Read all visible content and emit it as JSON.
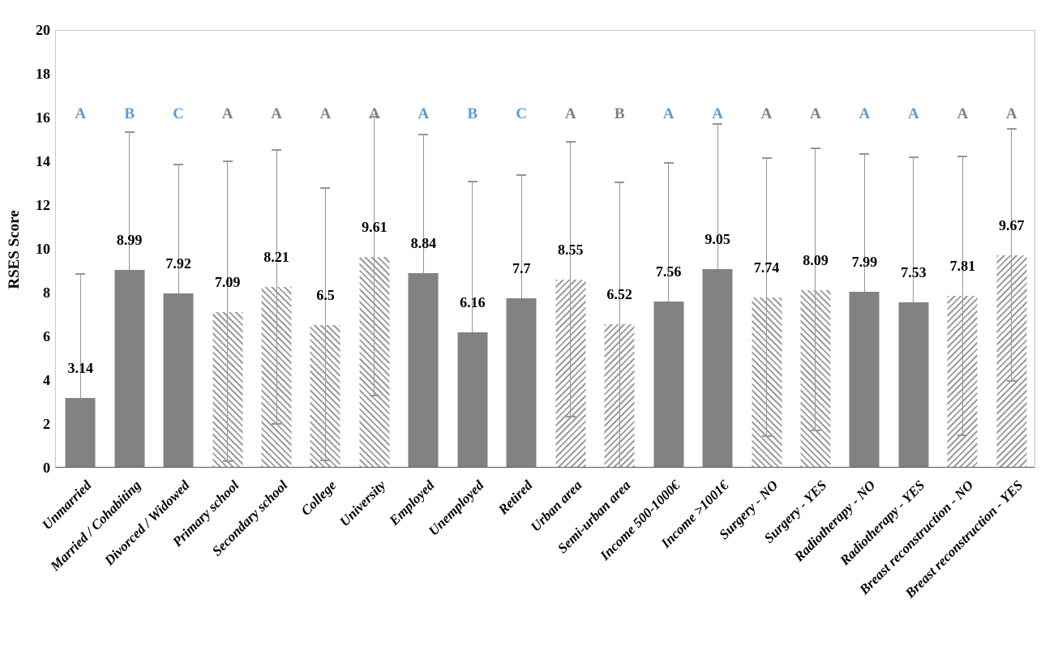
{
  "chart_data": {
    "type": "bar",
    "title": "",
    "xlabel": "",
    "ylabel": "RSES Score",
    "ylim": [
      0,
      20
    ],
    "ytick_step": 2,
    "grid": false,
    "legend": null,
    "colors": {
      "bar_solid": "#828282",
      "hatch_stripe": "#9b9b9b",
      "error_bar": "#969696",
      "letter_blue": "#5b9bd5",
      "letter_gray": "#808080",
      "plot_border": "#c9c9c9",
      "axis_line": "#595959",
      "label_text": "#000000"
    },
    "bars": [
      {
        "label": "Unmarried",
        "value": 3.14,
        "upper": 8.8,
        "lower": 0,
        "letter": "A",
        "letter_color": "blue",
        "fill": "solid"
      },
      {
        "label": "Married / Cohabiting",
        "value": 8.99,
        "upper": 15.3,
        "lower": 2.68,
        "letter": "B",
        "letter_color": "blue",
        "fill": "solid"
      },
      {
        "label": "Divorced / Widowed",
        "value": 7.92,
        "upper": 13.8,
        "lower": 2.04,
        "letter": "C",
        "letter_color": "blue",
        "fill": "solid"
      },
      {
        "label": "Primary school",
        "value": 7.09,
        "upper": 13.95,
        "lower": 0.23,
        "letter": "A",
        "letter_color": "gray",
        "fill": "hatch-down"
      },
      {
        "label": "Secondary school",
        "value": 8.21,
        "upper": 14.5,
        "lower": 1.92,
        "letter": "A",
        "letter_color": "gray",
        "fill": "hatch-down"
      },
      {
        "label": "College",
        "value": 6.5,
        "upper": 12.75,
        "lower": 0.25,
        "letter": "A",
        "letter_color": "gray",
        "fill": "hatch-down"
      },
      {
        "label": "University",
        "value": 9.61,
        "upper": 16.0,
        "lower": 3.22,
        "letter": "A",
        "letter_color": "gray",
        "fill": "hatch-down"
      },
      {
        "label": "Employed",
        "value": 8.84,
        "upper": 15.2,
        "lower": 2.48,
        "letter": "A",
        "letter_color": "blue",
        "fill": "solid"
      },
      {
        "label": "Unemployed",
        "value": 6.16,
        "upper": 13.05,
        "lower": 0,
        "letter": "B",
        "letter_color": "blue",
        "fill": "solid"
      },
      {
        "label": "Retired",
        "value": 7.7,
        "upper": 13.35,
        "lower": 2.05,
        "letter": "C",
        "letter_color": "blue",
        "fill": "solid"
      },
      {
        "label": "Urban area",
        "value": 8.55,
        "upper": 14.85,
        "lower": 2.25,
        "letter": "A",
        "letter_color": "gray",
        "fill": "hatch-up"
      },
      {
        "label": "Semi-urban area",
        "value": 6.52,
        "upper": 13.0,
        "lower": 0.05,
        "letter": "B",
        "letter_color": "gray",
        "fill": "hatch-up"
      },
      {
        "label": "Income 500-1000€",
        "value": 7.56,
        "upper": 13.9,
        "lower": 1.22,
        "letter": "A",
        "letter_color": "blue",
        "fill": "solid"
      },
      {
        "label": "Income >1001€",
        "value": 9.05,
        "upper": 15.65,
        "lower": 2.45,
        "letter": "A",
        "letter_color": "blue",
        "fill": "solid"
      },
      {
        "label": "Surgery - NO",
        "value": 7.74,
        "upper": 14.1,
        "lower": 1.38,
        "letter": "A",
        "letter_color": "gray",
        "fill": "hatch-down"
      },
      {
        "label": "Surgery - YES",
        "value": 8.09,
        "upper": 14.55,
        "lower": 1.63,
        "letter": "A",
        "letter_color": "gray",
        "fill": "hatch-down"
      },
      {
        "label": "Radiotherapy - NO",
        "value": 7.99,
        "upper": 14.3,
        "lower": 1.68,
        "letter": "A",
        "letter_color": "blue",
        "fill": "solid"
      },
      {
        "label": "Radiotherapy - YES",
        "value": 7.53,
        "upper": 14.15,
        "lower": 0.91,
        "letter": "A",
        "letter_color": "blue",
        "fill": "solid"
      },
      {
        "label": "Breast reconstruction - NO",
        "value": 7.81,
        "upper": 14.2,
        "lower": 1.42,
        "letter": "A",
        "letter_color": "gray",
        "fill": "hatch-up"
      },
      {
        "label": "Breast reconstruction - YES",
        "value": 9.67,
        "upper": 15.45,
        "lower": 3.89,
        "letter": "A",
        "letter_color": "gray",
        "fill": "hatch-up"
      }
    ]
  }
}
